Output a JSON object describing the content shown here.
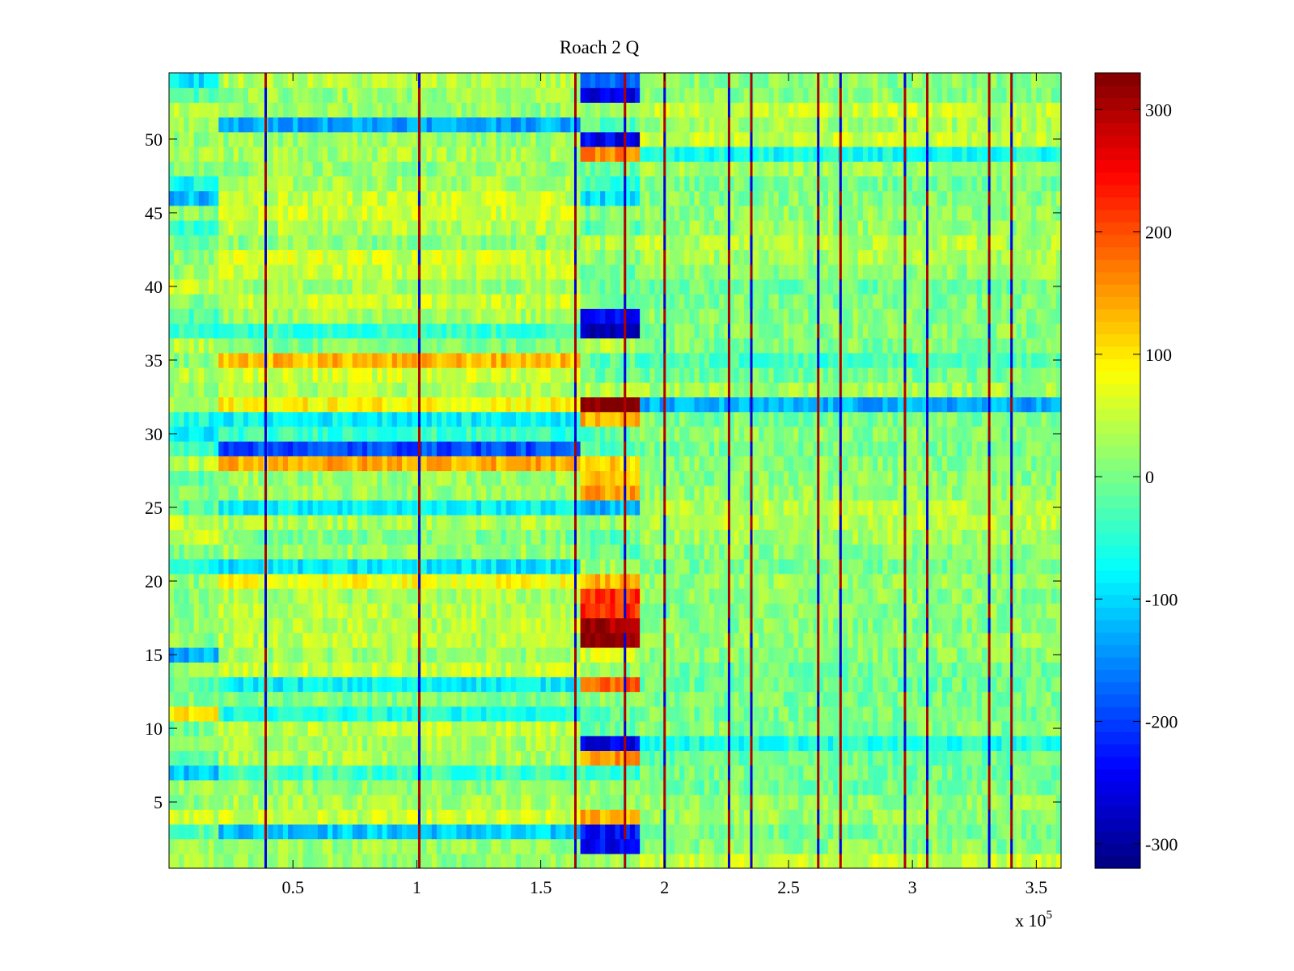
{
  "chart_data": {
    "type": "heatmap",
    "title": "Roach 2 Q",
    "xlabel": "",
    "ylabel": "",
    "x_multiplier_label": "x 10",
    "x_multiplier_exponent": "5",
    "xlim": [
      0,
      3.6
    ],
    "ylim": [
      0.5,
      54.5
    ],
    "x_ticks": [
      0.5,
      1,
      1.5,
      2,
      2.5,
      3,
      3.5
    ],
    "x_tick_labels": [
      "0.5",
      "1",
      "1.5",
      "2",
      "2.5",
      "3",
      "3.5"
    ],
    "y_ticks": [
      5,
      10,
      15,
      20,
      25,
      30,
      35,
      40,
      45,
      50
    ],
    "y_tick_labels": [
      "5",
      "10",
      "15",
      "20",
      "25",
      "30",
      "35",
      "40",
      "45",
      "50"
    ],
    "rows": 54,
    "colorbar": {
      "colormap": "jet",
      "limits": [
        -320,
        330
      ],
      "ticks": [
        -300,
        -200,
        -100,
        0,
        100,
        200,
        300
      ],
      "tick_labels": [
        "-300",
        "-200",
        "-100",
        "0",
        "100",
        "200",
        "300"
      ]
    },
    "vertical_spike_columns_x": [
      0.39,
      1.01,
      1.64,
      1.84,
      2.0,
      2.26,
      2.35,
      2.62,
      2.71,
      2.97,
      3.06,
      3.31,
      3.4
    ],
    "row_offsets_by_segment": {
      "segments_x": [
        [
          0,
          0.2
        ],
        [
          0.2,
          1.66
        ],
        [
          1.66,
          1.9
        ],
        [
          1.9,
          3.6
        ]
      ],
      "description_rows_values": [
        {
          "row": 54,
          "values": [
            -90,
            40,
            -180,
            10
          ]
        },
        {
          "row": 53,
          "values": [
            -20,
            20,
            -250,
            10
          ]
        },
        {
          "row": 52,
          "values": [
            40,
            20,
            10,
            50
          ]
        },
        {
          "row": 51,
          "values": [
            20,
            -130,
            -20,
            30
          ]
        },
        {
          "row": 50,
          "values": [
            20,
            20,
            -250,
            50
          ]
        },
        {
          "row": 49,
          "values": [
            30,
            30,
            170,
            -70
          ]
        },
        {
          "row": 47,
          "values": [
            -70,
            30,
            -40,
            0
          ]
        },
        {
          "row": 46,
          "values": [
            -120,
            50,
            -100,
            10
          ]
        },
        {
          "row": 44,
          "values": [
            -40,
            40,
            -20,
            20
          ]
        },
        {
          "row": 38,
          "values": [
            -30,
            30,
            -230,
            10
          ]
        },
        {
          "row": 37,
          "values": [
            -40,
            -40,
            -280,
            10
          ]
        },
        {
          "row": 35,
          "values": [
            10,
            130,
            -20,
            -30
          ]
        },
        {
          "row": 32,
          "values": [
            20,
            90,
            330,
            -130
          ]
        },
        {
          "row": 31,
          "values": [
            -60,
            -80,
            140,
            0
          ]
        },
        {
          "row": 30,
          "values": [
            -90,
            -40,
            -20,
            10
          ]
        },
        {
          "row": 29,
          "values": [
            -40,
            -190,
            -20,
            0
          ]
        },
        {
          "row": 28,
          "values": [
            40,
            140,
            110,
            10
          ]
        },
        {
          "row": 27,
          "values": [
            -20,
            20,
            130,
            10
          ]
        },
        {
          "row": 26,
          "values": [
            10,
            20,
            150,
            20
          ]
        },
        {
          "row": 25,
          "values": [
            -20,
            -80,
            -120,
            40
          ]
        },
        {
          "row": 21,
          "values": [
            -60,
            -90,
            20,
            0
          ]
        },
        {
          "row": 20,
          "values": [
            10,
            80,
            130,
            20
          ]
        },
        {
          "row": 19,
          "values": [
            10,
            30,
            220,
            10
          ]
        },
        {
          "row": 18,
          "values": [
            10,
            40,
            220,
            10
          ]
        },
        {
          "row": 17,
          "values": [
            10,
            40,
            310,
            10
          ]
        },
        {
          "row": 16,
          "values": [
            10,
            40,
            320,
            20
          ]
        },
        {
          "row": 15,
          "values": [
            -130,
            20,
            60,
            10
          ]
        },
        {
          "row": 13,
          "values": [
            -20,
            -80,
            190,
            -10
          ]
        },
        {
          "row": 11,
          "values": [
            100,
            -60,
            -20,
            0
          ]
        },
        {
          "row": 9,
          "values": [
            20,
            30,
            -250,
            -60
          ]
        },
        {
          "row": 8,
          "values": [
            -10,
            30,
            150,
            -10
          ]
        },
        {
          "row": 7,
          "values": [
            -110,
            -40,
            -40,
            0
          ]
        },
        {
          "row": 4,
          "values": [
            50,
            50,
            140,
            20
          ]
        },
        {
          "row": 3,
          "values": [
            -20,
            -110,
            -230,
            0
          ]
        },
        {
          "row": 2,
          "values": [
            30,
            20,
            -240,
            10
          ]
        }
      ]
    }
  }
}
